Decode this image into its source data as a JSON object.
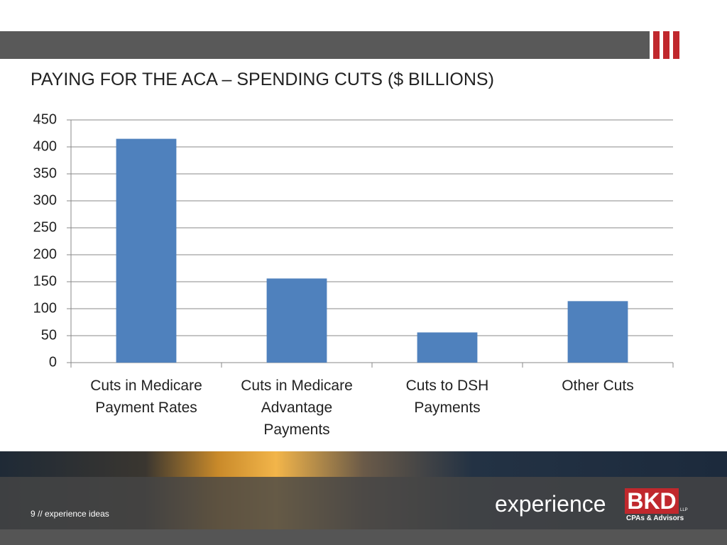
{
  "chart_data": {
    "type": "bar",
    "title": "PAYING FOR THE ACA – SPENDING CUTS ($ BILLIONS)",
    "categories": [
      "Cuts in Medicare Payment Rates",
      "Cuts in Medicare Advantage Payments",
      "Cuts to DSH Payments",
      "Other Cuts"
    ],
    "values": [
      415,
      156,
      56,
      114
    ],
    "color": "#4f81bd",
    "ylim": [
      0,
      450
    ],
    "yticks": [
      0,
      50,
      100,
      150,
      200,
      250,
      300,
      350,
      400,
      450
    ],
    "grid": true
  },
  "footer": {
    "page": "9 // experience ideas",
    "logo": "experience",
    "brand": "BKD",
    "brand_suffix": "LLP",
    "tagline": "CPAs & Advisors"
  }
}
